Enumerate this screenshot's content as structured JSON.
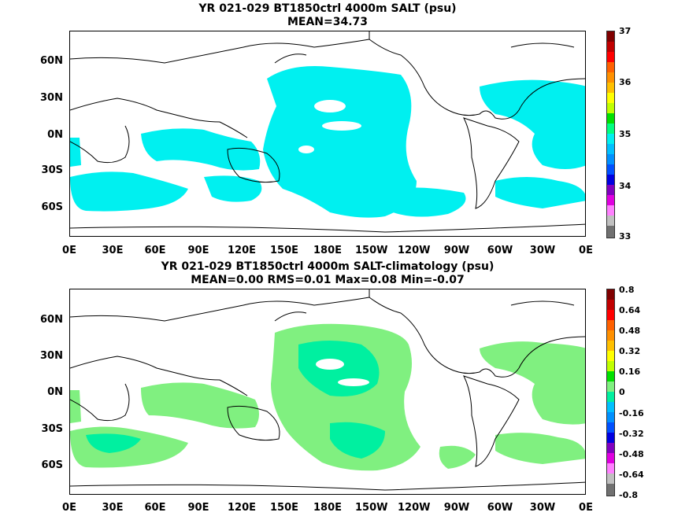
{
  "panels": [
    {
      "title_line1": "YR 021-029 BT1850ctrl 4000m SALT (psu)",
      "title_line2": "MEAN=34.73",
      "colorbar_labels": [
        "37",
        "36",
        "35",
        "34",
        "33"
      ],
      "field_color": "#00f0f0",
      "field_outline": "#55b3b3"
    },
    {
      "title_line1": "YR 021-029 BT1850ctrl 4000m SALT-climatology (psu)",
      "title_line2": "MEAN=0.00   RMS=0.01   Max=0.08   Min=-0.07",
      "colorbar_labels": [
        "0.8",
        "0.64",
        "0.48",
        "0.32",
        "0.16",
        "0",
        "-0.16",
        "-0.32",
        "-0.48",
        "-0.64",
        "-0.8"
      ],
      "field_color": "#80f080",
      "field_color2": "#00f0a0"
    }
  ],
  "lat_labels": [
    "60N",
    "30N",
    "0N",
    "30S",
    "60S"
  ],
  "lon_labels": [
    "0E",
    "30E",
    "60E",
    "90E",
    "120E",
    "150E",
    "180E",
    "150W",
    "120W",
    "90W",
    "60W",
    "30W",
    "0E"
  ],
  "colorbar_colors": [
    "#800000",
    "#c00000",
    "#ff0000",
    "#ff6000",
    "#ff9000",
    "#ffc000",
    "#ffff00",
    "#c0ff00",
    "#00e000",
    "#00ff80",
    "#00f0f0",
    "#00c0ff",
    "#0090ff",
    "#0050ff",
    "#0000e0",
    "#8000c0",
    "#e000e0",
    "#ff80ff",
    "#c0c0c0",
    "#707070"
  ]
}
